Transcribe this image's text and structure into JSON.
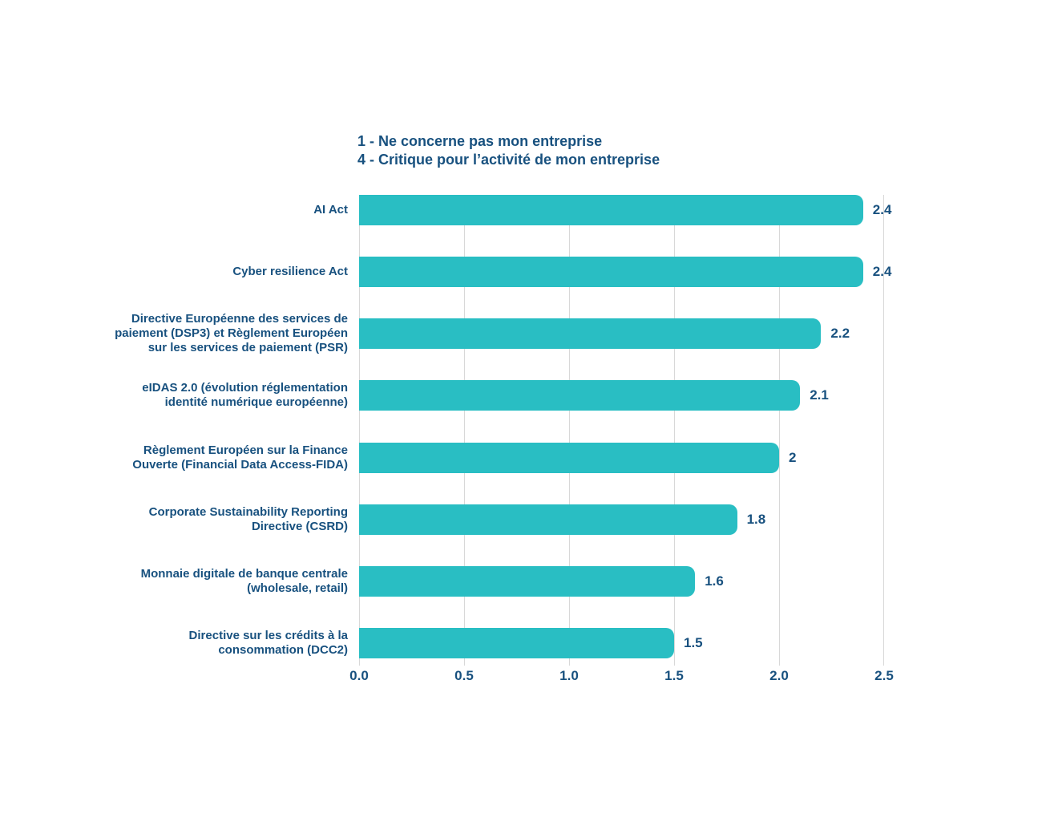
{
  "colors": {
    "background": "#FFFFFF",
    "bar": "#29BEC3",
    "text": "#18517F",
    "grid": "#D8D8D8"
  },
  "scale_note": {
    "line1": "1 - Ne concerne pas mon entreprise",
    "line2": "4 - Critique pour l’activité de mon entreprise"
  },
  "chart_data": {
    "type": "bar",
    "orientation": "horizontal",
    "title": "",
    "annotations": [
      "1 - Ne concerne pas mon entreprise",
      "4 - Critique pour l’activité de mon entreprise"
    ],
    "categories": [
      "AI Act",
      "Cyber resilience Act",
      "Directive Européenne des services de\npaiement (DSP3) et Règlement Européen\nsur les services de paiement (PSR)",
      "eIDAS 2.0 (évolution réglementation\nidentité numérique européenne)",
      "Règlement Européen sur la Finance\nOuverte (Financial Data Access-FIDA)",
      "Corporate Sustainability Reporting\nDirective (CSRD)",
      "Monnaie digitale de banque centrale\n(wholesale, retail)",
      "Directive sur les crédits à la\nconsommation (DCC2)"
    ],
    "values": [
      2.4,
      2.4,
      2.2,
      2.1,
      2,
      1.8,
      1.6,
      1.5
    ],
    "value_labels": [
      "2.4",
      "2.4",
      "2.2",
      "2.1",
      "2",
      "1.8",
      "1.6",
      "1.5"
    ],
    "xlim": [
      0,
      2.5
    ],
    "xticks": [
      0.0,
      0.5,
      1.0,
      1.5,
      2.0,
      2.5
    ],
    "xtick_labels": [
      "0.0",
      "0.5",
      "1.0",
      "1.5",
      "2.0",
      "2.5"
    ],
    "grid": true,
    "legend_position": "none"
  }
}
